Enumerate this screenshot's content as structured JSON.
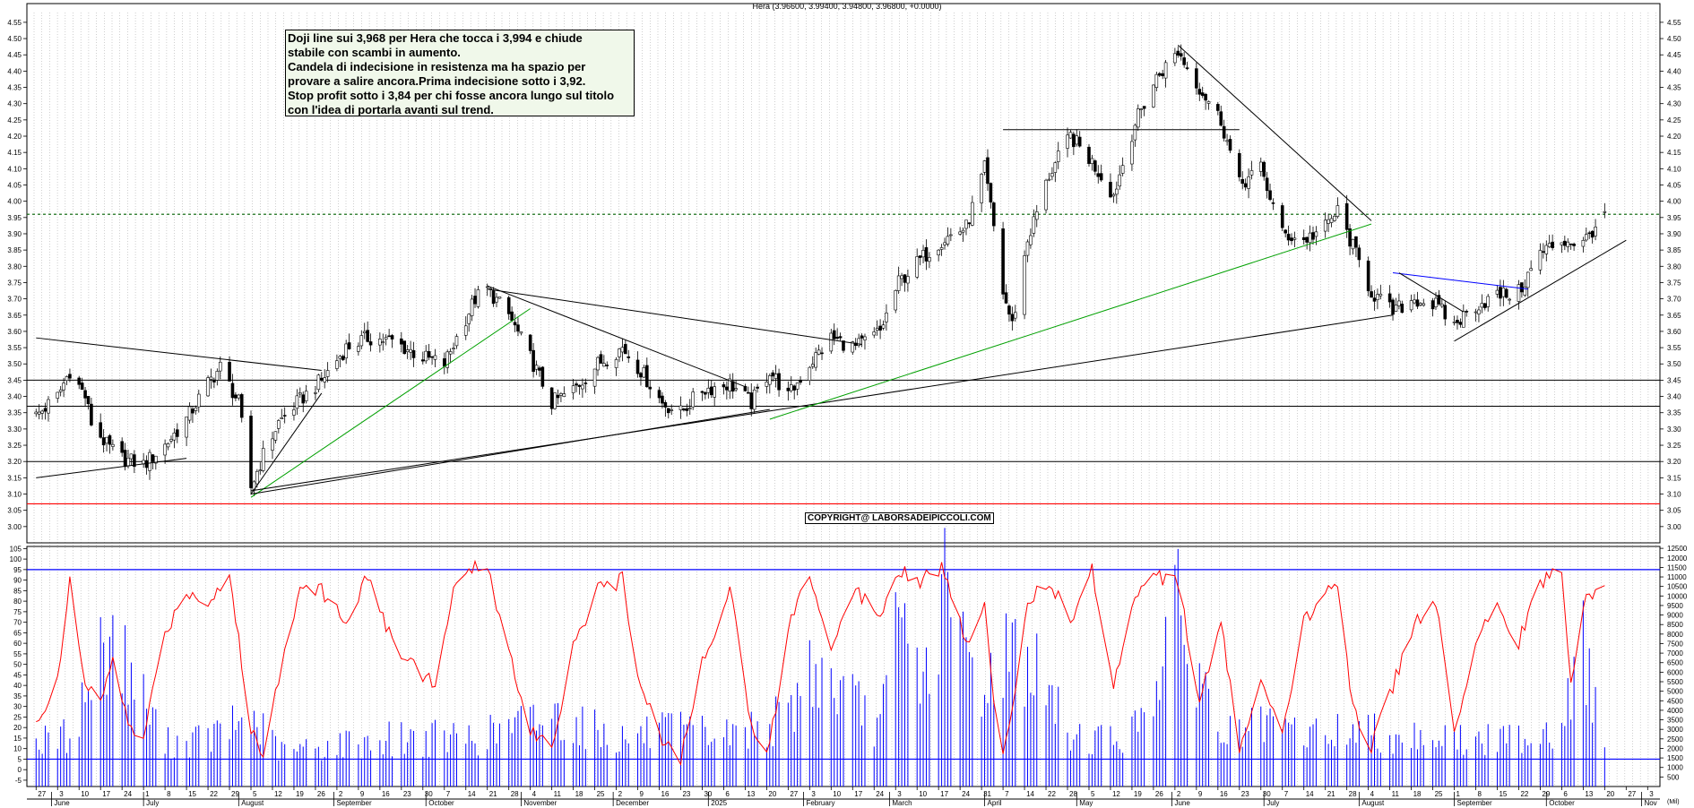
{
  "header": {
    "title": "Hera (3.96600, 3.99400, 3.94800, 3.96800, +0.0000)"
  },
  "annotation": {
    "lines": [
      "Doji line sui 3,968 per Hera che tocca i 3,994 e chiude",
      "stabile con scambi in aumento.",
      "Candela di indecisione in resistenza ma ha spazio per",
      "provare a salire ancora.Prima indecisione sotto i 3,92.",
      "Stop profit sotto i 3,84 per chi fosse ancora lungo sul titolo",
      "con l'idea di portarla avanti sul trend."
    ]
  },
  "copyright": "COPYRIGHT@ LABORSADEIPICCOLI.COM",
  "colors": {
    "candle": "#000000",
    "indicator": "#ff0000",
    "volume": "#0000ff",
    "support_red": "#ff0000",
    "green_trend": "#00a000",
    "blue_line": "#0000ff",
    "resistance_dash": "#006000"
  },
  "chart_data": [
    {
      "type": "candlestick",
      "ylim": [
        2.95,
        4.58
      ],
      "y_ticks": [
        "4.55",
        "4.50",
        "4.45",
        "4.40",
        "4.35",
        "4.30",
        "4.25",
        "4.20",
        "4.15",
        "4.10",
        "4.05",
        "4.00",
        "3.95",
        "3.90",
        "3.85",
        "3.80",
        "3.75",
        "3.70",
        "3.65",
        "3.60",
        "3.55",
        "3.50",
        "3.45",
        "3.40",
        "3.35",
        "3.30",
        "3.25",
        "3.20",
        "3.15",
        "3.10",
        "3.05",
        "3.00"
      ],
      "horizontal_levels": [
        3.45,
        3.37,
        3.2
      ],
      "support_level": 3.07,
      "resistance_level": 3.96,
      "close_path": [
        [
          "2024-05-27",
          3.34
        ],
        [
          "2024-06-03",
          3.4
        ],
        [
          "2024-06-07",
          3.48
        ],
        [
          "2024-06-12",
          3.4
        ],
        [
          "2024-06-14",
          3.32
        ],
        [
          "2024-06-19",
          3.25
        ],
        [
          "2024-06-24",
          3.21
        ],
        [
          "2024-07-01",
          3.19
        ],
        [
          "2024-07-08",
          3.25
        ],
        [
          "2024-07-15",
          3.33
        ],
        [
          "2024-07-22",
          3.44
        ],
        [
          "2024-07-26",
          3.49
        ],
        [
          "2024-08-01",
          3.38
        ],
        [
          "2024-08-05",
          3.12
        ],
        [
          "2024-08-09",
          3.22
        ],
        [
          "2024-08-14",
          3.32
        ],
        [
          "2024-08-20",
          3.38
        ],
        [
          "2024-08-28",
          3.45
        ],
        [
          "2024-09-05",
          3.55
        ],
        [
          "2024-09-12",
          3.58
        ],
        [
          "2024-09-20",
          3.57
        ],
        [
          "2024-09-30",
          3.52
        ],
        [
          "2024-10-07",
          3.5
        ],
        [
          "2024-10-11",
          3.58
        ],
        [
          "2024-10-17",
          3.7
        ],
        [
          "2024-10-21",
          3.73
        ],
        [
          "2024-10-28",
          3.65
        ],
        [
          "2024-11-04",
          3.52
        ],
        [
          "2024-11-11",
          3.38
        ],
        [
          "2024-11-18",
          3.42
        ],
        [
          "2024-11-26",
          3.5
        ],
        [
          "2024-12-04",
          3.55
        ],
        [
          "2024-12-10",
          3.48
        ],
        [
          "2024-12-17",
          3.38
        ],
        [
          "2024-12-23",
          3.35
        ],
        [
          "2024-12-30",
          3.42
        ],
        [
          "2025-01-08",
          3.44
        ],
        [
          "2025-01-15",
          3.38
        ],
        [
          "2025-01-21",
          3.48
        ],
        [
          "2025-01-27",
          3.4
        ],
        [
          "2025-02-03",
          3.5
        ],
        [
          "2025-02-10",
          3.58
        ],
        [
          "2025-02-18",
          3.55
        ],
        [
          "2025-02-26",
          3.6
        ],
        [
          "2025-03-04",
          3.75
        ],
        [
          "2025-03-11",
          3.82
        ],
        [
          "2025-03-18",
          3.88
        ],
        [
          "2025-03-26",
          3.92
        ],
        [
          "2025-04-01",
          4.1
        ],
        [
          "2025-04-04",
          3.92
        ],
        [
          "2025-04-07",
          3.72
        ],
        [
          "2025-04-10",
          3.62
        ],
        [
          "2025-04-15",
          3.88
        ],
        [
          "2025-04-22",
          4.08
        ],
        [
          "2025-04-29",
          4.2
        ],
        [
          "2025-05-06",
          4.12
        ],
        [
          "2025-05-13",
          4.02
        ],
        [
          "2025-05-20",
          4.24
        ],
        [
          "2025-05-27",
          4.38
        ],
        [
          "2025-06-03",
          4.46
        ],
        [
          "2025-06-10",
          4.35
        ],
        [
          "2025-06-17",
          4.25
        ],
        [
          "2025-06-23",
          4.05
        ],
        [
          "2025-06-30",
          4.1
        ],
        [
          "2025-07-07",
          3.9
        ],
        [
          "2025-07-14",
          3.88
        ],
        [
          "2025-07-21",
          3.92
        ],
        [
          "2025-07-25",
          3.97
        ],
        [
          "2025-07-30",
          3.86
        ],
        [
          "2025-08-05",
          3.72
        ],
        [
          "2025-08-12",
          3.66
        ],
        [
          "2025-08-19",
          3.7
        ],
        [
          "2025-08-26",
          3.68
        ],
        [
          "2025-09-01",
          3.62
        ],
        [
          "2025-09-08",
          3.68
        ],
        [
          "2025-09-15",
          3.71
        ],
        [
          "2025-09-22",
          3.72
        ],
        [
          "2025-09-29",
          3.84
        ],
        [
          "2025-10-06",
          3.88
        ],
        [
          "2025-10-13",
          3.87
        ],
        [
          "2025-10-20",
          3.968
        ]
      ],
      "last_candle": {
        "date": "2025-10-20",
        "open": 3.966,
        "high": 3.994,
        "low": 3.948,
        "close": 3.968
      },
      "trendlines": [
        {
          "color": "black",
          "points": [
            [
              "2024-05-27",
              3.58
            ],
            [
              "2024-08-28",
              3.48
            ]
          ]
        },
        {
          "color": "black",
          "points": [
            [
              "2024-05-27",
              3.15
            ],
            [
              "2024-07-15",
              3.21
            ]
          ]
        },
        {
          "color": "black",
          "points": [
            [
              "2024-08-05",
              3.1
            ],
            [
              "2024-08-28",
              3.41
            ]
          ]
        },
        {
          "color": "green",
          "points": [
            [
              "2024-08-05",
              3.09
            ],
            [
              "2024-11-04",
              3.67
            ]
          ]
        },
        {
          "color": "black",
          "points": [
            [
              "2024-08-05",
              3.1
            ],
            [
              "2025-01-21",
              3.36
            ]
          ]
        },
        {
          "color": "black",
          "points": [
            [
              "2024-08-05",
              3.11
            ],
            [
              "2025-08-12",
              3.65
            ]
          ]
        },
        {
          "color": "black",
          "points": [
            [
              "2024-10-21",
              3.74
            ],
            [
              "2025-01-13",
              3.43
            ]
          ]
        },
        {
          "color": "black",
          "points": [
            [
              "2024-10-21",
              3.73
            ],
            [
              "2025-02-20",
              3.56
            ]
          ]
        },
        {
          "color": "green",
          "points": [
            [
              "2025-01-21",
              3.33
            ],
            [
              "2025-08-05",
              3.93
            ]
          ]
        },
        {
          "color": "black",
          "points": [
            [
              "2025-04-07",
              4.22
            ],
            [
              "2025-06-23",
              4.22
            ]
          ]
        },
        {
          "color": "black",
          "points": [
            [
              "2025-06-03",
              4.48
            ],
            [
              "2025-08-05",
              3.94
            ]
          ]
        },
        {
          "color": "blue",
          "points": [
            [
              "2025-08-12",
              3.78
            ],
            [
              "2025-09-25",
              3.73
            ]
          ]
        },
        {
          "color": "black",
          "points": [
            [
              "2025-08-14",
              3.78
            ],
            [
              "2025-09-04",
              3.66
            ]
          ]
        },
        {
          "color": "black",
          "points": [
            [
              "2025-09-01",
              3.57
            ],
            [
              "2025-10-27",
              3.88
            ]
          ]
        }
      ],
      "x_day_labels": [
        "27",
        "3",
        "10",
        "17",
        "24",
        "1",
        "8",
        "15",
        "22",
        "29",
        "5",
        "12",
        "19",
        "26",
        "2",
        "9",
        "16",
        "23",
        "30",
        "7",
        "14",
        "21",
        "28",
        "4",
        "11",
        "18",
        "25",
        "2",
        "9",
        "16",
        "23",
        "30",
        "6",
        "13",
        "20",
        "27",
        "3",
        "10",
        "17",
        "24",
        "3",
        "10",
        "17",
        "24",
        "31",
        "7",
        "14",
        "22",
        "28",
        "5",
        "12",
        "19",
        "26",
        "2",
        "9",
        "16",
        "23",
        "30",
        "7",
        "14",
        "21",
        "28",
        "4",
        "11",
        "18",
        "25",
        "1",
        "8",
        "15",
        "22",
        "29",
        "6",
        "13",
        "20",
        "27",
        "3"
      ],
      "x_month_labels": [
        "June",
        "July",
        "August",
        "September",
        "October",
        "November",
        "December",
        "2025",
        "February",
        "March",
        "April",
        "May",
        "June",
        "July",
        "August",
        "September",
        "October",
        "Nov"
      ]
    },
    {
      "type": "bar+line",
      "ylim": [
        -8,
        106
      ],
      "y_ticks_left": [
        "105",
        "100",
        "95",
        "90",
        "85",
        "80",
        "75",
        "70",
        "65",
        "60",
        "55",
        "50",
        "45",
        "40",
        "35",
        "30",
        "25",
        "20",
        "15",
        "10",
        "5",
        "0",
        "-5"
      ],
      "y_ticks_right": [
        "12500",
        "12000",
        "11500",
        "11000",
        "10500",
        "10000",
        "9500",
        "9000",
        "8500",
        "8000",
        "7500",
        "7000",
        "6500",
        "6000",
        "5500",
        "5000",
        "4500",
        "4000",
        "3500",
        "3000",
        "2500",
        "2000",
        "1500",
        "1000",
        "500"
      ],
      "upper_level": 95,
      "lower_level": 5,
      "volume_label": "(Mil)",
      "oscillator_path": [
        [
          "2024-05-27",
          20
        ],
        [
          "2024-06-03",
          45
        ],
        [
          "2024-06-07",
          88
        ],
        [
          "2024-06-12",
          40
        ],
        [
          "2024-06-17",
          30
        ],
        [
          "2024-06-21",
          55
        ],
        [
          "2024-06-26",
          20
        ],
        [
          "2024-07-01",
          15
        ],
        [
          "2024-07-08",
          65
        ],
        [
          "2024-07-15",
          85
        ],
        [
          "2024-07-22",
          80
        ],
        [
          "2024-07-29",
          92
        ],
        [
          "2024-08-05",
          20
        ],
        [
          "2024-08-09",
          5
        ],
        [
          "2024-08-16",
          60
        ],
        [
          "2024-08-22",
          90
        ],
        [
          "2024-08-28",
          85
        ],
        [
          "2024-09-05",
          70
        ],
        [
          "2024-09-12",
          93
        ],
        [
          "2024-09-20",
          60
        ],
        [
          "2024-09-27",
          50
        ],
        [
          "2024-10-04",
          40
        ],
        [
          "2024-10-10",
          85
        ],
        [
          "2024-10-17",
          96
        ],
        [
          "2024-10-21",
          98
        ],
        [
          "2024-10-28",
          55
        ],
        [
          "2024-11-04",
          20
        ],
        [
          "2024-11-11",
          10
        ],
        [
          "2024-11-18",
          60
        ],
        [
          "2024-11-26",
          85
        ],
        [
          "2024-12-04",
          90
        ],
        [
          "2024-12-10",
          40
        ],
        [
          "2024-12-17",
          15
        ],
        [
          "2024-12-23",
          5
        ],
        [
          "2024-12-30",
          50
        ],
        [
          "2025-01-08",
          88
        ],
        [
          "2025-01-15",
          20
        ],
        [
          "2025-01-21",
          10
        ],
        [
          "2025-01-27",
          70
        ],
        [
          "2025-02-03",
          92
        ],
        [
          "2025-02-10",
          60
        ],
        [
          "2025-02-18",
          85
        ],
        [
          "2025-02-26",
          75
        ],
        [
          "2025-03-04",
          96
        ],
        [
          "2025-03-11",
          90
        ],
        [
          "2025-03-18",
          96
        ],
        [
          "2025-03-26",
          60
        ],
        [
          "2025-04-01",
          80
        ],
        [
          "2025-04-04",
          30
        ],
        [
          "2025-04-07",
          10
        ],
        [
          "2025-04-10",
          30
        ],
        [
          "2025-04-15",
          80
        ],
        [
          "2025-04-22",
          90
        ],
        [
          "2025-04-29",
          70
        ],
        [
          "2025-05-06",
          95
        ],
        [
          "2025-05-13",
          40
        ],
        [
          "2025-05-20",
          85
        ],
        [
          "2025-05-27",
          92
        ],
        [
          "2025-06-03",
          90
        ],
        [
          "2025-06-10",
          30
        ],
        [
          "2025-06-17",
          70
        ],
        [
          "2025-06-23",
          10
        ],
        [
          "2025-06-30",
          40
        ],
        [
          "2025-07-07",
          15
        ],
        [
          "2025-07-14",
          70
        ],
        [
          "2025-07-21",
          85
        ],
        [
          "2025-07-25",
          90
        ],
        [
          "2025-07-30",
          30
        ],
        [
          "2025-08-05",
          10
        ],
        [
          "2025-08-12",
          40
        ],
        [
          "2025-08-19",
          70
        ],
        [
          "2025-08-26",
          80
        ],
        [
          "2025-09-01",
          15
        ],
        [
          "2025-09-08",
          60
        ],
        [
          "2025-09-15",
          80
        ],
        [
          "2025-09-22",
          60
        ],
        [
          "2025-09-29",
          90
        ],
        [
          "2025-10-06",
          93
        ],
        [
          "2025-10-09",
          40
        ],
        [
          "2025-10-13",
          80
        ],
        [
          "2025-10-20",
          88
        ]
      ],
      "volume_path": [
        [
          "2024-05-27",
          2500
        ],
        [
          "2024-06-07",
          3000
        ],
        [
          "2024-06-20",
          9000
        ],
        [
          "2024-07-08",
          2500
        ],
        [
          "2024-07-22",
          2800
        ],
        [
          "2024-07-30",
          3500
        ],
        [
          "2024-08-05",
          4000
        ],
        [
          "2024-08-15",
          2000
        ],
        [
          "2024-09-05",
          2500
        ],
        [
          "2024-09-20",
          2800
        ],
        [
          "2024-10-10",
          2800
        ],
        [
          "2024-10-21",
          3000
        ],
        [
          "2024-11-11",
          4200
        ],
        [
          "2024-12-04",
          2800
        ],
        [
          "2024-12-17",
          3200
        ],
        [
          "2025-01-08",
          3000
        ],
        [
          "2025-01-27",
          4000
        ],
        [
          "2025-02-03",
          7000
        ],
        [
          "2025-02-26",
          3500
        ],
        [
          "2025-03-04",
          9500
        ],
        [
          "2025-03-14",
          6000
        ],
        [
          "2025-03-18",
          11500
        ],
        [
          "2025-03-26",
          7800
        ],
        [
          "2025-04-01",
          5500
        ],
        [
          "2025-04-07",
          8000
        ],
        [
          "2025-04-15",
          7500
        ],
        [
          "2025-04-29",
          3000
        ],
        [
          "2025-05-13",
          2800
        ],
        [
          "2025-05-20",
          3300
        ],
        [
          "2025-06-03",
          10000
        ],
        [
          "2025-06-17",
          3000
        ],
        [
          "2025-06-30",
          3400
        ],
        [
          "2025-07-21",
          3000
        ],
        [
          "2025-07-30",
          3400
        ],
        [
          "2025-08-12",
          3000
        ],
        [
          "2025-08-26",
          3000
        ],
        [
          "2025-09-08",
          2500
        ],
        [
          "2025-09-22",
          3000
        ],
        [
          "2025-10-06",
          3500
        ],
        [
          "2025-10-13",
          8000
        ],
        [
          "2025-10-20",
          2500
        ]
      ]
    }
  ]
}
